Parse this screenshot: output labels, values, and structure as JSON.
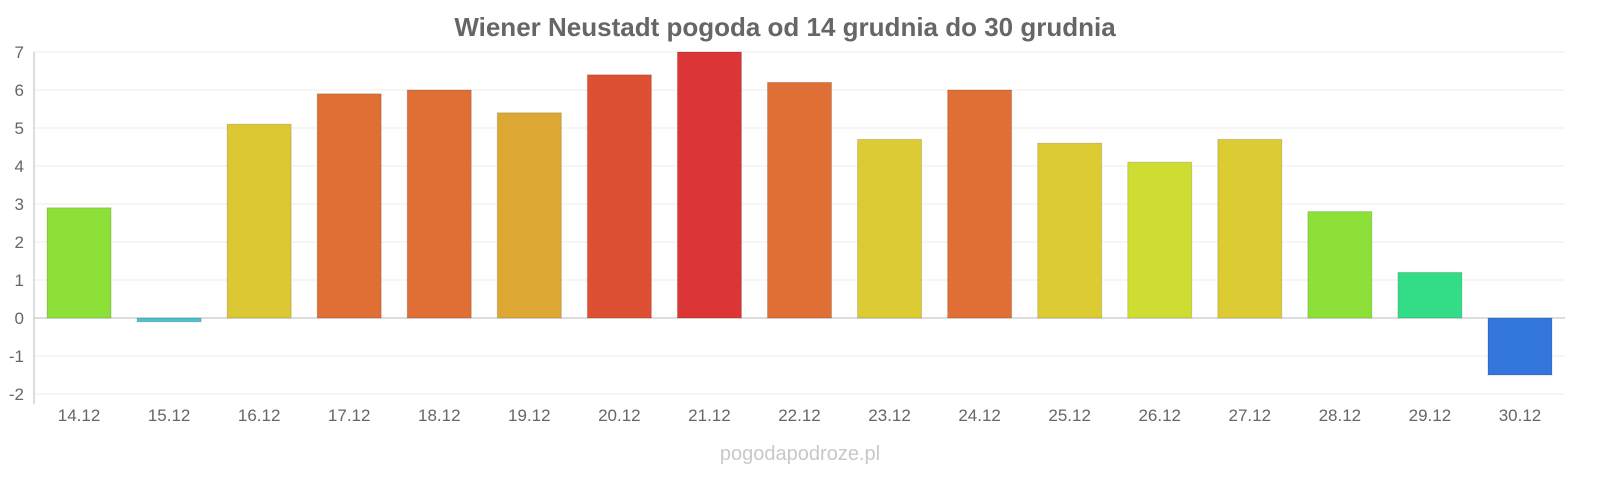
{
  "chart_data": {
    "type": "bar",
    "title": "Wiener Neustadt pogoda od 14 grudnia do 30 grudnia",
    "xlabel": "",
    "ylabel": "",
    "ylim": [
      -2,
      7
    ],
    "yticks": [
      "-2",
      "-1",
      "0",
      "1",
      "2",
      "3",
      "4",
      "5",
      "6",
      "7"
    ],
    "grid": true,
    "categories": [
      "14.12",
      "15.12",
      "16.12",
      "17.12",
      "18.12",
      "19.12",
      "20.12",
      "21.12",
      "22.12",
      "23.12",
      "24.12",
      "25.12",
      "26.12",
      "27.12",
      "28.12",
      "29.12",
      "30.12"
    ],
    "values": [
      2.9,
      -0.1,
      5.1,
      5.9,
      6.0,
      5.4,
      6.4,
      7.0,
      6.2,
      4.7,
      6.0,
      4.6,
      4.1,
      4.7,
      2.8,
      1.2,
      -1.5
    ],
    "colors": [
      "#8ce038",
      "#4ac0d0",
      "#dcc832",
      "#df6f35",
      "#df6f35",
      "#dca833",
      "#de5033",
      "#dc3535",
      "#df6f35",
      "#dccb33",
      "#df6f35",
      "#dccb33",
      "#cfdd33",
      "#dccb33",
      "#8ce038",
      "#33dd88",
      "#3377dd"
    ]
  },
  "watermark": "pogodapodroze.pl"
}
